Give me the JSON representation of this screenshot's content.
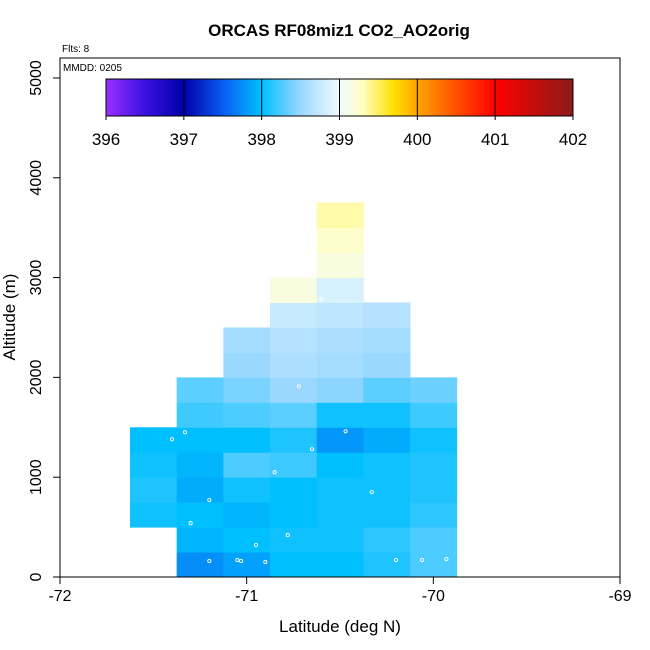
{
  "chart_data": {
    "type": "heatmap",
    "title": "ORCAS RF08miz1 CO2_AO2orig",
    "xlabel": "Latitude (deg N)",
    "ylabel": "Altitude (m)",
    "xlim": [
      -72,
      -69
    ],
    "ylim": [
      0,
      5200
    ],
    "x_ticks": [
      -72,
      -71,
      -70,
      -69
    ],
    "x_tick_labels": [
      "-72",
      "-71",
      "-70",
      "-69"
    ],
    "y_ticks": [
      0,
      1000,
      2000,
      3000,
      4000,
      5000
    ],
    "y_tick_labels": [
      "0",
      "1000",
      "2000",
      "3000",
      "4000",
      "5000"
    ],
    "grid": false,
    "cell_width_deg": 0.25,
    "cell_height_m": 250,
    "flights_label": "Flts: 8",
    "date_label": "MMDD: 0205",
    "colorbar": {
      "min": 396,
      "max": 402,
      "ticks": [
        396,
        397,
        398,
        399,
        400,
        401,
        402
      ],
      "tick_labels": [
        "396",
        "397",
        "398",
        "399",
        "400",
        "401",
        "402"
      ],
      "stops": [
        {
          "v": 396.0,
          "c": "#9b30ff"
        },
        {
          "v": 396.5,
          "c": "#3a10e0"
        },
        {
          "v": 397.0,
          "c": "#0000a8"
        },
        {
          "v": 397.5,
          "c": "#0a5cf0"
        },
        {
          "v": 398.0,
          "c": "#00bfff"
        },
        {
          "v": 398.5,
          "c": "#9ad8ff"
        },
        {
          "v": 399.0,
          "c": "#f2fbff"
        },
        {
          "v": 399.3,
          "c": "#ffffc0"
        },
        {
          "v": 399.7,
          "c": "#ffe000"
        },
        {
          "v": 400.0,
          "c": "#ffa500"
        },
        {
          "v": 400.5,
          "c": "#ff5000"
        },
        {
          "v": 401.0,
          "c": "#ff0000"
        },
        {
          "v": 402.0,
          "c": "#8b1a1a"
        }
      ]
    },
    "cells": [
      {
        "lon": -71.5,
        "alt": 500,
        "v": 398.05
      },
      {
        "lon": -71.5,
        "alt": 750,
        "v": 398.1
      },
      {
        "lon": -71.5,
        "alt": 1000,
        "v": 398.05
      },
      {
        "lon": -71.5,
        "alt": 1250,
        "v": 398.0
      },
      {
        "lon": -71.25,
        "alt": 0,
        "v": 397.75
      },
      {
        "lon": -71.25,
        "alt": 250,
        "v": 397.95
      },
      {
        "lon": -71.25,
        "alt": 500,
        "v": 398.0
      },
      {
        "lon": -71.25,
        "alt": 750,
        "v": 397.9
      },
      {
        "lon": -71.25,
        "alt": 1000,
        "v": 397.95
      },
      {
        "lon": -71.25,
        "alt": 1250,
        "v": 398.0
      },
      {
        "lon": -71.25,
        "alt": 1500,
        "v": 398.2
      },
      {
        "lon": -71.25,
        "alt": 1750,
        "v": 398.3
      },
      {
        "lon": -71.0,
        "alt": 0,
        "v": 397.85
      },
      {
        "lon": -71.0,
        "alt": 250,
        "v": 398.0
      },
      {
        "lon": -71.0,
        "alt": 500,
        "v": 397.95
      },
      {
        "lon": -71.0,
        "alt": 750,
        "v": 398.05
      },
      {
        "lon": -71.0,
        "alt": 1000,
        "v": 398.25
      },
      {
        "lon": -71.0,
        "alt": 1250,
        "v": 398.0
      },
      {
        "lon": -71.0,
        "alt": 1500,
        "v": 398.25
      },
      {
        "lon": -71.0,
        "alt": 1750,
        "v": 398.4
      },
      {
        "lon": -71.0,
        "alt": 2000,
        "v": 398.5
      },
      {
        "lon": -71.0,
        "alt": 2250,
        "v": 398.55
      },
      {
        "lon": -70.75,
        "alt": 0,
        "v": 398.0
      },
      {
        "lon": -70.75,
        "alt": 250,
        "v": 398.05
      },
      {
        "lon": -70.75,
        "alt": 500,
        "v": 398.0
      },
      {
        "lon": -70.75,
        "alt": 750,
        "v": 398.0
      },
      {
        "lon": -70.75,
        "alt": 1000,
        "v": 398.2
      },
      {
        "lon": -70.75,
        "alt": 1250,
        "v": 398.1
      },
      {
        "lon": -70.75,
        "alt": 1500,
        "v": 398.3
      },
      {
        "lon": -70.75,
        "alt": 1750,
        "v": 398.5
      },
      {
        "lon": -70.75,
        "alt": 2000,
        "v": 398.6
      },
      {
        "lon": -70.75,
        "alt": 2250,
        "v": 398.65
      },
      {
        "lon": -70.75,
        "alt": 2500,
        "v": 398.75
      },
      {
        "lon": -70.75,
        "alt": 2750,
        "v": 399.15
      },
      {
        "lon": -70.5,
        "alt": 0,
        "v": 398.0
      },
      {
        "lon": -70.5,
        "alt": 250,
        "v": 398.05
      },
      {
        "lon": -70.5,
        "alt": 500,
        "v": 398.05
      },
      {
        "lon": -70.5,
        "alt": 750,
        "v": 398.05
      },
      {
        "lon": -70.5,
        "alt": 1000,
        "v": 398.0
      },
      {
        "lon": -70.5,
        "alt": 1250,
        "v": 397.8
      },
      {
        "lon": -70.5,
        "alt": 1500,
        "v": 398.05
      },
      {
        "lon": -70.5,
        "alt": 1750,
        "v": 398.45
      },
      {
        "lon": -70.5,
        "alt": 2000,
        "v": 398.55
      },
      {
        "lon": -70.5,
        "alt": 2250,
        "v": 398.6
      },
      {
        "lon": -70.5,
        "alt": 2500,
        "v": 398.7
      },
      {
        "lon": -70.5,
        "alt": 2750,
        "v": 398.85
      },
      {
        "lon": -70.5,
        "alt": 3000,
        "v": 399.15
      },
      {
        "lon": -70.5,
        "alt": 3250,
        "v": 399.25
      },
      {
        "lon": -70.5,
        "alt": 3500,
        "v": 399.35
      },
      {
        "lon": -70.25,
        "alt": 0,
        "v": 398.1
      },
      {
        "lon": -70.25,
        "alt": 250,
        "v": 398.15
      },
      {
        "lon": -70.25,
        "alt": 500,
        "v": 398.05
      },
      {
        "lon": -70.25,
        "alt": 750,
        "v": 398.05
      },
      {
        "lon": -70.25,
        "alt": 1000,
        "v": 398.05
      },
      {
        "lon": -70.25,
        "alt": 1250,
        "v": 397.9
      },
      {
        "lon": -70.25,
        "alt": 1500,
        "v": 398.05
      },
      {
        "lon": -70.25,
        "alt": 1750,
        "v": 398.3
      },
      {
        "lon": -70.25,
        "alt": 2000,
        "v": 398.5
      },
      {
        "lon": -70.25,
        "alt": 2250,
        "v": 398.55
      },
      {
        "lon": -70.25,
        "alt": 2500,
        "v": 398.65
      },
      {
        "lon": -70.0,
        "alt": 0,
        "v": 398.25
      },
      {
        "lon": -70.0,
        "alt": 250,
        "v": 398.25
      },
      {
        "lon": -70.0,
        "alt": 500,
        "v": 398.15
      },
      {
        "lon": -70.0,
        "alt": 750,
        "v": 398.1
      },
      {
        "lon": -70.0,
        "alt": 1000,
        "v": 398.1
      },
      {
        "lon": -70.0,
        "alt": 1250,
        "v": 398.05
      },
      {
        "lon": -70.0,
        "alt": 1500,
        "v": 398.2
      },
      {
        "lon": -70.0,
        "alt": 1750,
        "v": 398.35
      }
    ],
    "sample_points": [
      {
        "lat": -71.4,
        "alt": 1380
      },
      {
        "lat": -71.33,
        "alt": 1450
      },
      {
        "lat": -71.3,
        "alt": 540
      },
      {
        "lat": -71.2,
        "alt": 770
      },
      {
        "lat": -71.2,
        "alt": 160
      },
      {
        "lat": -71.05,
        "alt": 170
      },
      {
        "lat": -71.03,
        "alt": 160
      },
      {
        "lat": -70.95,
        "alt": 320
      },
      {
        "lat": -70.9,
        "alt": 150
      },
      {
        "lat": -70.85,
        "alt": 1050
      },
      {
        "lat": -70.78,
        "alt": 420
      },
      {
        "lat": -70.72,
        "alt": 1910
      },
      {
        "lat": -70.65,
        "alt": 1280
      },
      {
        "lat": -70.6,
        "alt": 2780
      },
      {
        "lat": -70.47,
        "alt": 1460
      },
      {
        "lat": -70.33,
        "alt": 850
      },
      {
        "lat": -70.2,
        "alt": 170
      },
      {
        "lat": -70.06,
        "alt": 170
      },
      {
        "lat": -69.93,
        "alt": 180
      },
      {
        "lat": -69.85,
        "alt": 1000
      },
      {
        "lat": -69.82,
        "alt": 1860
      }
    ]
  }
}
